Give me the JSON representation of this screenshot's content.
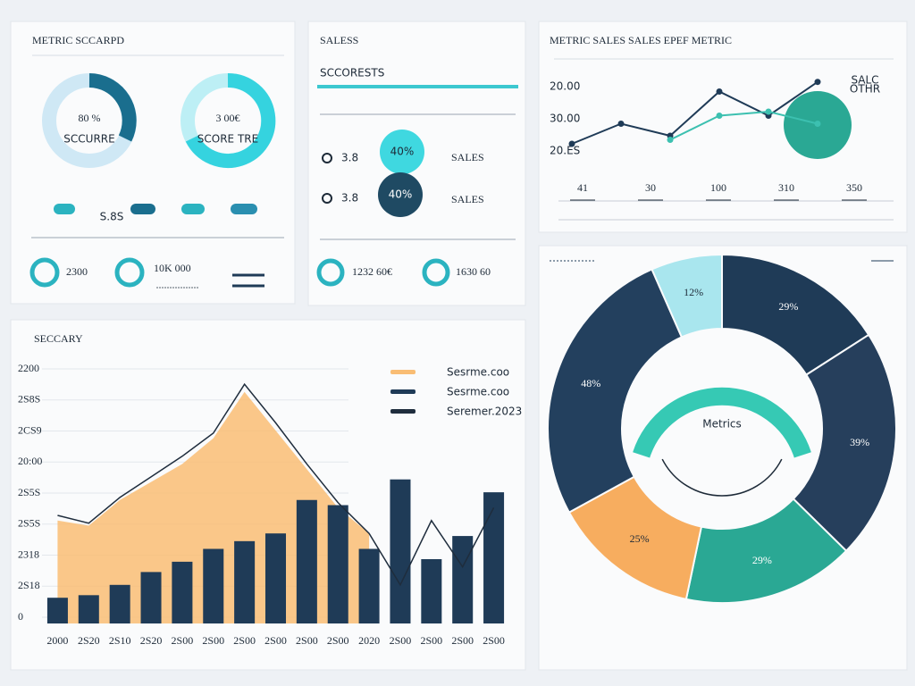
{
  "scorecard": {
    "title": "METRIC SCCARPD",
    "gauges": [
      {
        "value": "80 %",
        "label": "SCCURRE"
      },
      {
        "value": "3 00€",
        "label": "SCORE TRE"
      }
    ],
    "caption": "S.8S",
    "stats": [
      "2300",
      "10K 000"
    ]
  },
  "sales": {
    "title": "SALESS",
    "subtitle": "SCCORESTS",
    "rows": [
      {
        "key": "3.8",
        "badge": "40%",
        "label": "SALES"
      },
      {
        "key": "3.8",
        "badge": "40%",
        "label": "SALES"
      }
    ],
    "stats": [
      "1232 60€",
      "1630 60"
    ]
  },
  "chart_data": [
    {
      "type": "line",
      "title": "METRIC SALES SALES EPEF METRIC",
      "axis_texts": [
        "20.00",
        "30.00",
        "20.ES"
      ],
      "categories": [
        null,
        null,
        null,
        null,
        null,
        null
      ],
      "ylim": [
        0,
        100
      ],
      "series": [
        {
          "name": "SALC",
          "color": "#1f3b57",
          "values": [
            10,
            35,
            20,
            75,
            45,
            87
          ]
        },
        {
          "name": "OTHR",
          "color": "#3cc0b0",
          "values": [
            null,
            null,
            15,
            45,
            50,
            35
          ]
        }
      ],
      "kpis": [
        "41",
        "30",
        "100",
        "310",
        "350"
      ]
    },
    {
      "type": "combo",
      "title": "SECCARY",
      "axis_texts": [
        "2200",
        "2S8S",
        "2CS9",
        "20:00",
        "2S5S",
        "2S5S",
        "2318",
        "2S18",
        "0"
      ],
      "categories": [
        "2000",
        "2S20",
        "2S10",
        "2S20",
        "2S00",
        "2S00",
        "2S00",
        "2S00",
        "2S00",
        "2S00",
        "2020",
        "2S00",
        "2S00",
        "2S00",
        "2S00"
      ],
      "ylim": [
        0,
        100
      ],
      "series": [
        {
          "name": "Sesrme.coo",
          "type": "area",
          "color": "#f9bd74",
          "values": [
            40,
            38,
            48,
            55,
            62,
            72,
            90,
            75,
            60,
            45,
            35,
            null,
            null,
            null,
            null
          ]
        },
        {
          "name": "Sesrme.coo",
          "type": "bar",
          "color": "#1f3b57",
          "values": [
            10,
            11,
            15,
            20,
            24,
            29,
            32,
            35,
            48,
            46,
            29,
            56,
            25,
            34,
            51
          ]
        },
        {
          "name": "Seremer.2023",
          "type": "line",
          "color": "#1f2d3d",
          "values": [
            42,
            39,
            49,
            57,
            65,
            74,
            93,
            78,
            62,
            47,
            35,
            15,
            40,
            22,
            45
          ]
        }
      ]
    },
    {
      "type": "pie",
      "center_text": "Metrics",
      "values": [
        29,
        39,
        29,
        25,
        48,
        12
      ],
      "value_labels": [
        "29%",
        "39%",
        "29%",
        "25%",
        "48%",
        "12%"
      ],
      "colors": [
        "#1f3b57",
        "#263f5c",
        "#2aa894",
        "#f7ad5f",
        "#23405e",
        "#a9e6ee"
      ]
    }
  ]
}
